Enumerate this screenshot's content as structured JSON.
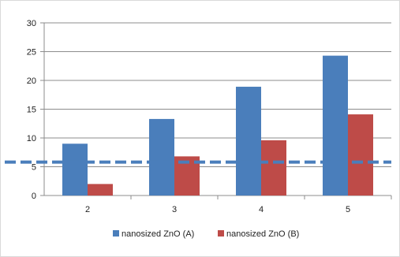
{
  "chart_data": {
    "type": "bar",
    "categories": [
      "2",
      "3",
      "4",
      "5"
    ],
    "series": [
      {
        "name": "nanosized ZnO (A)",
        "values": [
          9.0,
          13.3,
          18.9,
          24.3
        ],
        "color": "#4a7ebb"
      },
      {
        "name": "nanosized ZnO (B)",
        "values": [
          2.0,
          6.8,
          9.6,
          14.1
        ],
        "color": "#be4b48"
      }
    ],
    "reference_line": {
      "value": 5.8,
      "style": "dashed",
      "color": "#4a7ebb"
    },
    "ylim": [
      0,
      30
    ],
    "yticks": [
      "0",
      "5",
      "10",
      "15",
      "20",
      "25",
      "30"
    ],
    "grid": true,
    "legend_position": "bottom",
    "title": "",
    "xlabel": "",
    "ylabel": ""
  }
}
